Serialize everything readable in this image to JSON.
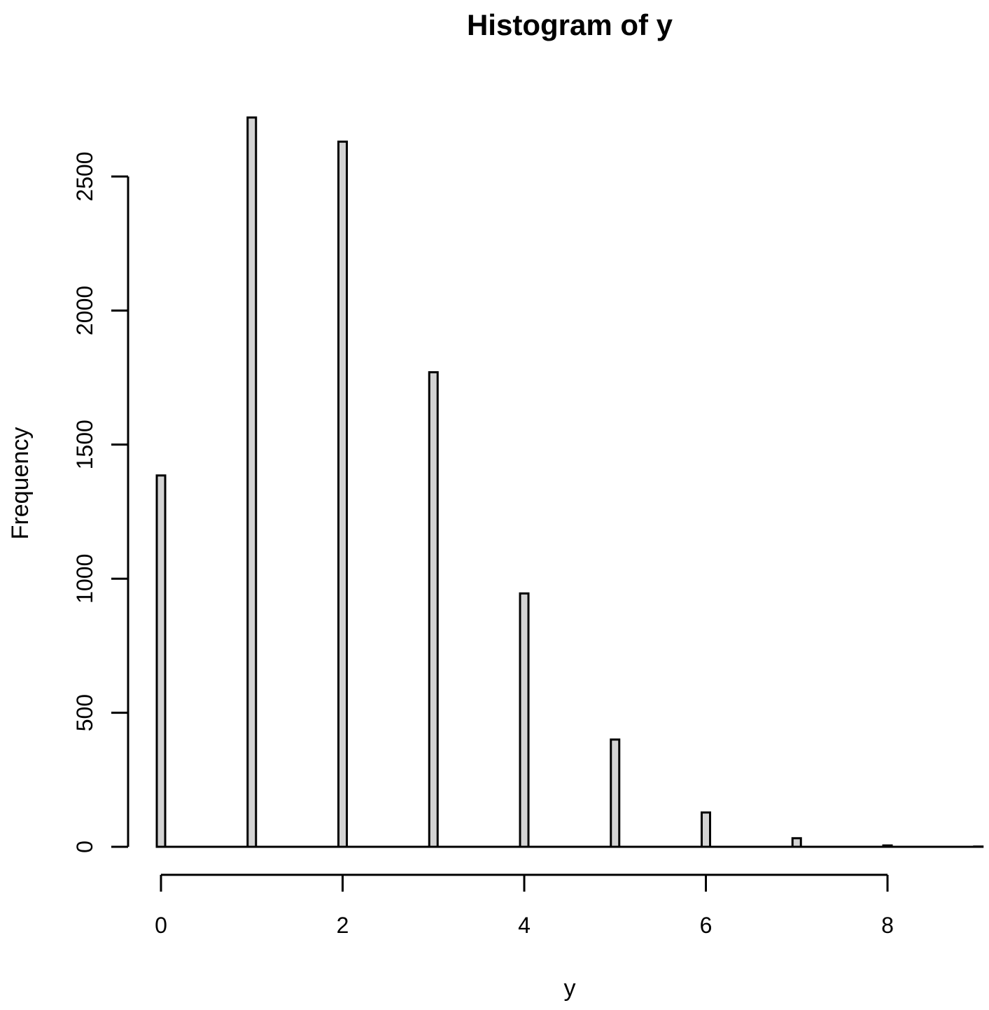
{
  "chart_data": {
    "type": "bar",
    "title": "Histogram of y",
    "xlabel": "y",
    "ylabel": "Frequency",
    "x": [
      0,
      1,
      2,
      3,
      4,
      5,
      6,
      7,
      8,
      9
    ],
    "values": [
      1385,
      2720,
      2630,
      1770,
      945,
      400,
      128,
      32,
      5,
      1
    ],
    "xlim": [
      0,
      9
    ],
    "ylim": [
      0,
      2720
    ],
    "xticks": [
      "0",
      "2",
      "4",
      "6",
      "8"
    ],
    "yticks": [
      "0",
      "500",
      "1000",
      "1500",
      "2000",
      "2500"
    ],
    "grid": false,
    "colors": {
      "bar_fill": "#d3d3d3",
      "bar_stroke": "#000000"
    }
  }
}
